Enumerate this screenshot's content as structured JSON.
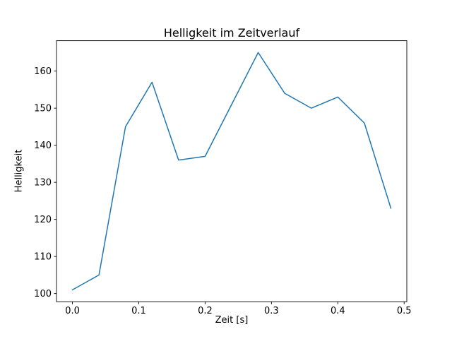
{
  "chart_data": {
    "type": "line",
    "title": "Helligkeit im Zeitverlauf",
    "xlabel": "Zeit [s]",
    "ylabel": "Helligkeit",
    "x": [
      0.0,
      0.04,
      0.08,
      0.12,
      0.16,
      0.2,
      0.24,
      0.28,
      0.32,
      0.36,
      0.4,
      0.44,
      0.48
    ],
    "y": [
      101,
      105,
      145,
      157,
      136,
      137,
      151,
      165,
      154,
      150,
      153,
      146,
      123
    ],
    "xticks": [
      0.0,
      0.1,
      0.2,
      0.3,
      0.4,
      0.5
    ],
    "xtick_labels": [
      "0.0",
      "0.1",
      "0.2",
      "0.3",
      "0.4",
      "0.5"
    ],
    "yticks": [
      100,
      110,
      120,
      130,
      140,
      150,
      160
    ],
    "ytick_labels": [
      "100",
      "110",
      "120",
      "130",
      "140",
      "150",
      "160"
    ],
    "xlim": [
      -0.024,
      0.504
    ],
    "ylim": [
      97.8,
      168.2
    ],
    "line_color": "#1f77b4",
    "axis_color": "#000000",
    "background": "#ffffff",
    "grid": false,
    "legend": null
  }
}
